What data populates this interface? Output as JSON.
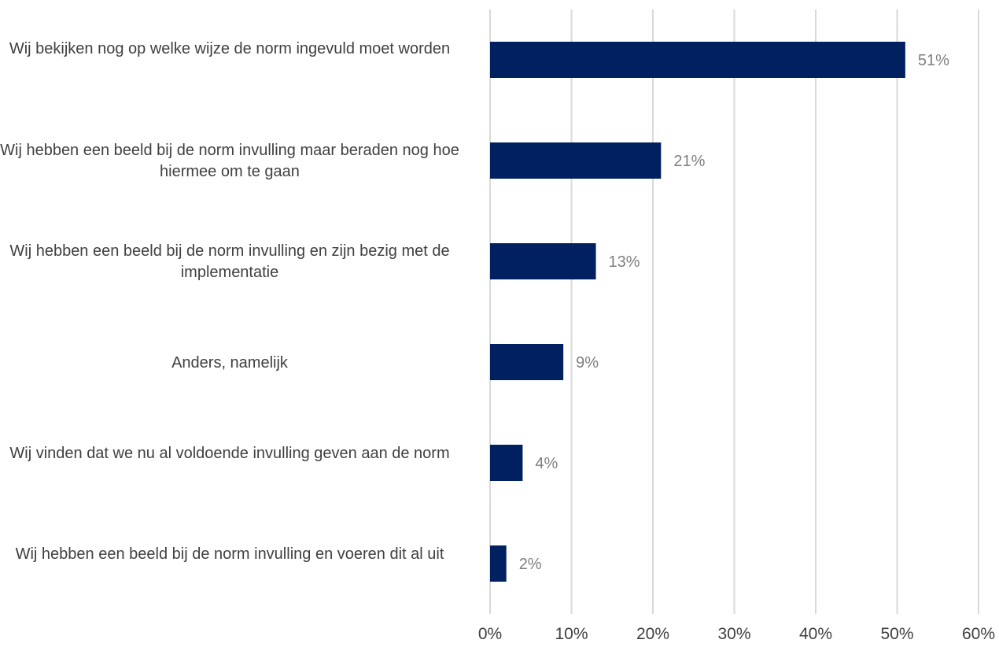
{
  "chart_data": {
    "type": "bar",
    "orientation": "horizontal",
    "categories": [
      "Wij bekijken nog op welke wijze de norm ingevuld moet worden",
      "Wij hebben een beeld bij de norm invulling maar beraden nog hoe hiermee om te gaan",
      "Wij hebben een beeld bij de norm invulling en zijn bezig met de implementatie",
      "Anders, namelijk",
      "Wij vinden dat we nu al voldoende invulling geven aan de norm",
      "Wij hebben een beeld bij de norm invulling en voeren dit al uit"
    ],
    "values": [
      51,
      21,
      13,
      9,
      4,
      2
    ],
    "value_labels": [
      "51%",
      "21%",
      "13%",
      "9%",
      "4%",
      "2%"
    ],
    "xlim": [
      0,
      60
    ],
    "x_ticks": [
      0,
      10,
      20,
      30,
      40,
      50,
      60
    ],
    "x_tick_labels": [
      "0%",
      "10%",
      "20%",
      "30%",
      "40%",
      "50%",
      "60%"
    ],
    "grid": true,
    "bar_color": "#002060",
    "grid_color": "#d9d9d9",
    "label_color": "#404040",
    "value_label_color": "#7f7f7f"
  }
}
